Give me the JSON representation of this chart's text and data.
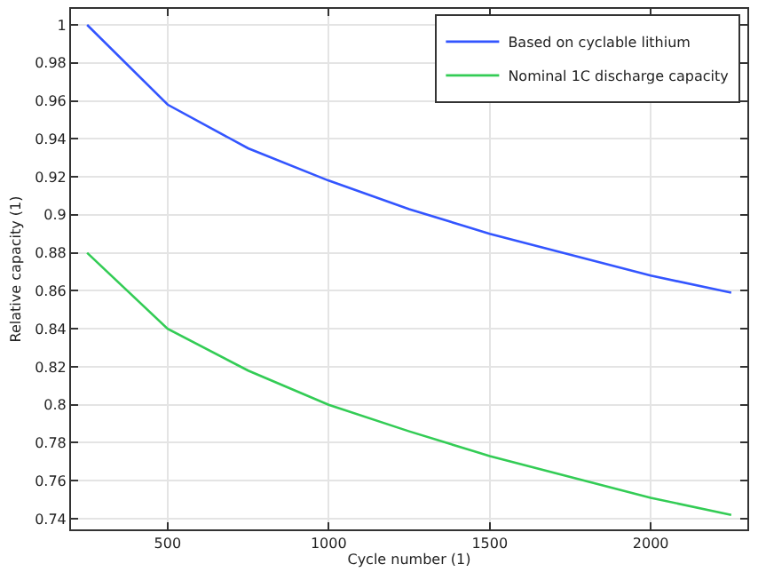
{
  "chart_data": {
    "type": "line",
    "xlabel": "Cycle number (1)",
    "ylabel": "Relative capacity (1)",
    "x": [
      250,
      500,
      750,
      1000,
      1250,
      1500,
      1750,
      2000,
      2250
    ],
    "series": [
      {
        "name": "Based on cyclable lithium",
        "color": "#3355ff",
        "values": [
          1.0,
          0.958,
          0.935,
          0.918,
          0.903,
          0.89,
          0.879,
          0.868,
          0.859
        ]
      },
      {
        "name": "Nominal 1C discharge capacity",
        "color": "#33cc55",
        "values": [
          0.88,
          0.84,
          0.818,
          0.8,
          0.786,
          0.773,
          0.762,
          0.751,
          0.742
        ]
      }
    ],
    "xlim": [
      200,
      2300
    ],
    "xticks": [
      500,
      1000,
      1500,
      2000
    ],
    "ylim": [
      0.7344,
      1.0084
    ],
    "yticks": [
      {
        "value": 0.74,
        "label": "0.74"
      },
      {
        "value": 0.76,
        "label": "0.76"
      },
      {
        "value": 0.78,
        "label": "0.78"
      },
      {
        "value": 0.8,
        "label": "0.8"
      },
      {
        "value": 0.82,
        "label": "0.82"
      },
      {
        "value": 0.84,
        "label": "0.84"
      },
      {
        "value": 0.86,
        "label": "0.86"
      },
      {
        "value": 0.88,
        "label": "0.88"
      },
      {
        "value": 0.9,
        "label": "0.9"
      },
      {
        "value": 0.92,
        "label": "0.92"
      },
      {
        "value": 0.94,
        "label": "0.94"
      },
      {
        "value": 0.96,
        "label": "0.96"
      },
      {
        "value": 0.98,
        "label": "0.98"
      },
      {
        "value": 1,
        "label": "1"
      }
    ],
    "grid": true,
    "legend": "top right",
    "marker": "none",
    "line_style": "solid"
  }
}
